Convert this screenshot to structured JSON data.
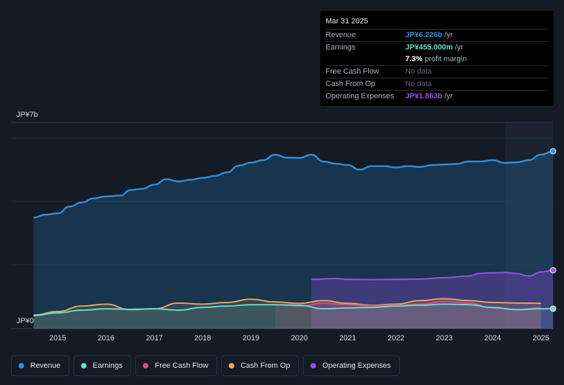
{
  "tooltip": {
    "date": "Mar 31 2025",
    "revenue_label": "Revenue",
    "revenue_value": "JP¥6.226b",
    "revenue_unit": "/yr",
    "earnings_label": "Earnings",
    "earnings_value": "JP¥455.000m",
    "earnings_unit": "/yr",
    "margin_value": "7.3%",
    "margin_text": "profit margin",
    "fcf_label": "Free Cash Flow",
    "fcf_value": "No data",
    "cfo_label": "Cash From Op",
    "cfo_value": "No data",
    "opex_label": "Operating Expenses",
    "opex_value": "JP¥1.863b",
    "opex_unit": "/yr"
  },
  "legend": [
    {
      "label": "Revenue",
      "color": "#2d8fe0"
    },
    {
      "label": "Earnings",
      "color": "#5fe0d0"
    },
    {
      "label": "Free Cash Flow",
      "color": "#d9527f"
    },
    {
      "label": "Cash From Op",
      "color": "#e8a85a"
    },
    {
      "label": "Operating Expenses",
      "color": "#a24ce8"
    }
  ],
  "chart_data": {
    "type": "area",
    "y_top_label": "JP¥7b",
    "y_bottom_label": "JP¥0",
    "ylim": [
      0,
      7
    ],
    "units": "JP¥ billions",
    "x_ticks": [
      "2015",
      "2016",
      "2017",
      "2018",
      "2019",
      "2020",
      "2021",
      "2022",
      "2023",
      "2024",
      "2025"
    ],
    "series": [
      {
        "name": "Revenue",
        "color": "#2d8fe0",
        "x": [
          2014.5,
          2014.75,
          2015.0,
          2015.25,
          2015.5,
          2015.75,
          2016.0,
          2016.3,
          2016.5,
          2016.75,
          2017.0,
          2017.25,
          2017.5,
          2017.75,
          2018.0,
          2018.25,
          2018.5,
          2018.75,
          2019.0,
          2019.25,
          2019.5,
          2019.75,
          2020.0,
          2020.25,
          2020.5,
          2020.75,
          2021.0,
          2021.25,
          2021.5,
          2021.75,
          2022.0,
          2022.25,
          2022.5,
          2022.75,
          2023.0,
          2023.25,
          2023.5,
          2023.75,
          2024.0,
          2024.25,
          2024.5,
          2024.75,
          2025.0,
          2025.25
        ],
        "values": [
          3.8,
          3.9,
          3.95,
          4.2,
          4.35,
          4.5,
          4.57,
          4.6,
          4.8,
          4.85,
          5.0,
          5.2,
          5.12,
          5.18,
          5.25,
          5.32,
          5.45,
          5.7,
          5.81,
          5.9,
          6.1,
          5.99,
          5.98,
          6.1,
          5.85,
          5.77,
          5.72,
          5.55,
          5.68,
          5.68,
          5.63,
          5.68,
          5.65,
          5.72,
          5.74,
          5.76,
          5.85,
          5.85,
          5.9,
          5.8,
          5.82,
          5.9,
          6.1,
          6.226
        ]
      },
      {
        "name": "Earnings",
        "color": "#5fe0d0",
        "x": [
          2014.5,
          2015.0,
          2015.5,
          2016.0,
          2016.5,
          2017.0,
          2017.5,
          2018.0,
          2018.5,
          2019.0,
          2019.5,
          2020.0,
          2020.5,
          2021.0,
          2021.5,
          2022.0,
          2022.5,
          2023.0,
          2023.5,
          2024.0,
          2024.5,
          2025.0,
          2025.25
        ],
        "values": [
          0.2,
          0.3,
          0.4,
          0.45,
          0.43,
          0.45,
          0.4,
          0.5,
          0.55,
          0.6,
          0.6,
          0.58,
          0.45,
          0.48,
          0.5,
          0.55,
          0.58,
          0.62,
          0.6,
          0.5,
          0.42,
          0.45,
          0.455
        ]
      },
      {
        "name": "Free Cash Flow",
        "color": "#d9527f",
        "x": [
          2019.5,
          2020.0,
          2020.5,
          2021.0,
          2021.5,
          2022.0,
          2022.5,
          2023.0,
          2023.5,
          2024.0,
          2024.5,
          2025.0
        ],
        "values": [
          0.6,
          0.55,
          0.65,
          0.6,
          0.56,
          0.58,
          0.62,
          0.72,
          0.66,
          0.48,
          0.42,
          0.48
        ]
      },
      {
        "name": "Cash From Op",
        "color": "#e8a85a",
        "x": [
          2014.5,
          2015.0,
          2015.5,
          2016.0,
          2016.5,
          2017.0,
          2017.5,
          2018.0,
          2018.5,
          2019.0,
          2019.5,
          2020.0,
          2020.5,
          2021.0,
          2021.5,
          2022.0,
          2022.5,
          2023.0,
          2023.5,
          2024.0,
          2024.5,
          2025.0
        ],
        "values": [
          0.22,
          0.35,
          0.55,
          0.62,
          0.42,
          0.45,
          0.66,
          0.62,
          0.68,
          0.8,
          0.7,
          0.65,
          0.75,
          0.65,
          0.58,
          0.62,
          0.75,
          0.82,
          0.75,
          0.68,
          0.66,
          0.65
        ]
      },
      {
        "name": "Operating Expenses",
        "color": "#a24ce8",
        "x": [
          2020.25,
          2020.75,
          2021.0,
          2021.5,
          2022.0,
          2022.5,
          2023.0,
          2023.5,
          2023.75,
          2024.0,
          2024.25,
          2024.5,
          2024.75,
          2025.0,
          2025.25
        ],
        "values": [
          1.53,
          1.56,
          1.53,
          1.52,
          1.53,
          1.54,
          1.59,
          1.65,
          1.75,
          1.77,
          1.78,
          1.74,
          1.65,
          1.8,
          1.863
        ]
      }
    ]
  }
}
